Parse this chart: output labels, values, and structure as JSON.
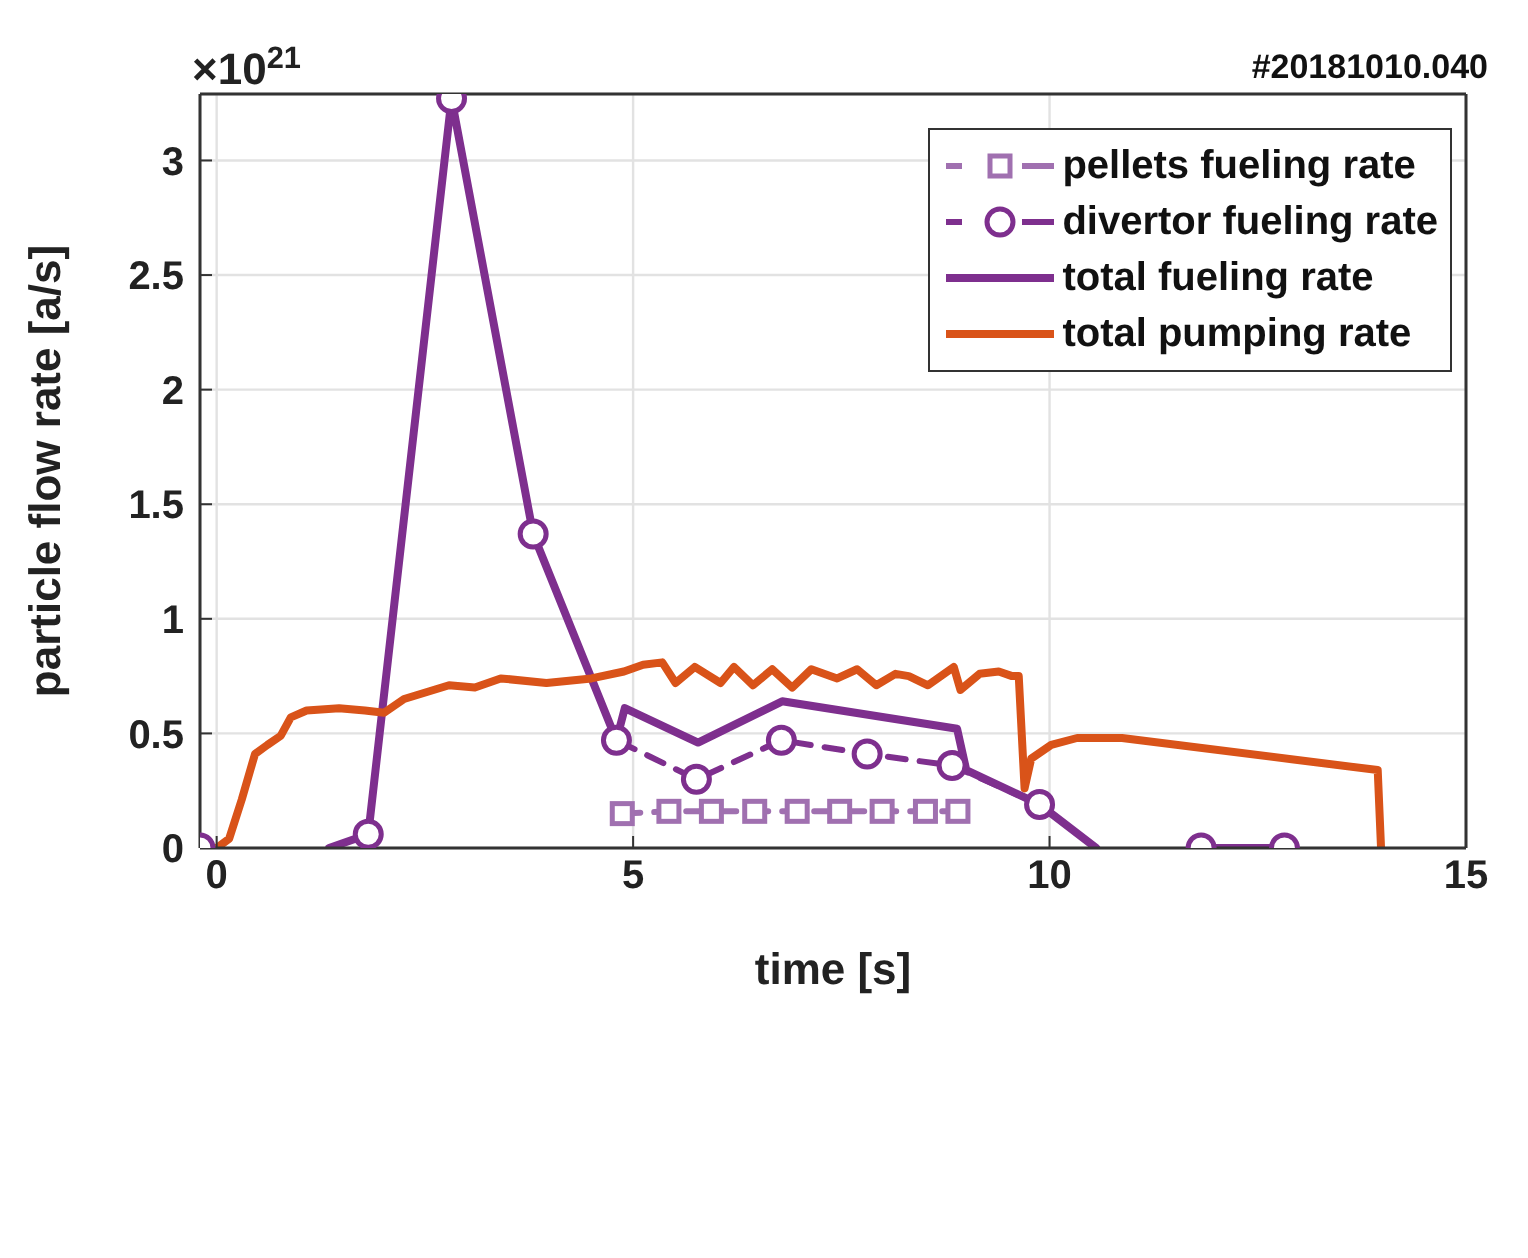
{
  "chart_data": {
    "type": "line",
    "title": "#20181010.040",
    "xlabel": "time [s]",
    "ylabel": "particle flow rate [a/s]",
    "annotations": [
      "×10$^{21}$"
    ],
    "xlim": [
      -0.2,
      15
    ],
    "xticks": [
      0,
      5,
      10,
      15
    ],
    "ylim": [
      0,
      3.29
    ],
    "yticks": [
      0,
      0.5,
      1,
      1.5,
      2,
      2.5,
      3
    ],
    "grid": true,
    "legend": "top right",
    "series": [
      {
        "name": "pellets fueling rate",
        "color": "#a070b0",
        "marker": "square",
        "line_style": "dashed",
        "x": [
          4.87,
          5.43,
          5.94,
          6.46,
          6.97,
          7.48,
          7.99,
          8.51,
          8.9
        ],
        "values": [
          0.15,
          0.16,
          0.16,
          0.16,
          0.16,
          0.16,
          0.16,
          0.16,
          0.16
        ]
      },
      {
        "name": "divertor fueling rate",
        "color": "#7e2f8e",
        "marker": "circle",
        "line_style": "dashed",
        "x": [
          -0.2,
          0.8,
          1.82,
          2.82,
          3.8,
          4.8,
          5.76,
          6.78,
          7.81,
          8.83,
          9.88,
          10.9,
          11.82,
          12.82
        ],
        "values": [
          0,
          null,
          0.06,
          3.27,
          1.37,
          0.47,
          0.3,
          0.47,
          0.41,
          0.36,
          0.19,
          null,
          0,
          0
        ]
      },
      {
        "name": "total fueling rate",
        "color": "#7e2f8e",
        "marker": "none",
        "line_style": "solid",
        "x": [
          1.35,
          1.82,
          2.82,
          3.8,
          4.8,
          4.9,
          5.78,
          6.79,
          8.89,
          9.0,
          9.88,
          10.56,
          11.2,
          11.82,
          12.82
        ],
        "values": [
          0,
          0.06,
          3.27,
          1.37,
          0.47,
          0.61,
          0.46,
          0.64,
          0.52,
          0.34,
          0.19,
          0,
          null,
          0,
          0
        ]
      },
      {
        "name": "total pumping rate",
        "color": "#d95319",
        "marker": "none",
        "line_style": "solid",
        "x": [
          0,
          0.15,
          0.3,
          0.46,
          0.61,
          0.77,
          0.89,
          1.08,
          1.47,
          1.78,
          2.01,
          2.25,
          2.79,
          3.1,
          3.41,
          3.96,
          4.5,
          4.89,
          5.12,
          5.35,
          5.51,
          5.74,
          6.05,
          6.21,
          6.44,
          6.67,
          6.91,
          7.14,
          7.45,
          7.69,
          7.92,
          8.15,
          8.31,
          8.54,
          8.85,
          8.93,
          9.16,
          9.39,
          9.55,
          9.63,
          9.7,
          9.78,
          10.02,
          10.33,
          10.87,
          13.94,
          13.98
        ],
        "values": [
          0,
          0.04,
          0.21,
          0.41,
          0.45,
          0.49,
          0.57,
          0.6,
          0.61,
          0.6,
          0.59,
          0.65,
          0.71,
          0.7,
          0.74,
          0.72,
          0.74,
          0.77,
          0.8,
          0.81,
          0.72,
          0.79,
          0.72,
          0.79,
          0.71,
          0.78,
          0.7,
          0.78,
          0.74,
          0.78,
          0.71,
          0.76,
          0.75,
          0.71,
          0.79,
          0.69,
          0.76,
          0.77,
          0.75,
          0.75,
          0.26,
          0.39,
          0.45,
          0.48,
          0.48,
          0.34,
          0
        ]
      }
    ]
  }
}
